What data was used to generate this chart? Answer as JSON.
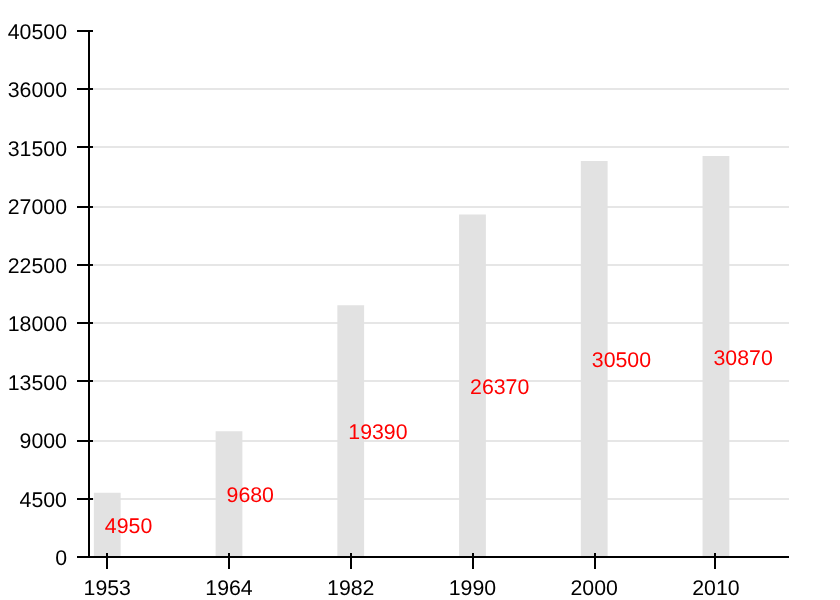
{
  "chart_data": {
    "type": "bar",
    "categories": [
      "1953",
      "1964",
      "1982",
      "1990",
      "2000",
      "2010"
    ],
    "values": [
      4950,
      9680,
      19390,
      26370,
      30500,
      30870
    ],
    "color": "#e2e2e2",
    "ylim": [
      0,
      40500
    ],
    "yticks": [
      0,
      4500,
      9000,
      13500,
      18000,
      22500,
      27000,
      31500,
      36000,
      40500
    ],
    "grid": "y",
    "data_labels": true
  }
}
